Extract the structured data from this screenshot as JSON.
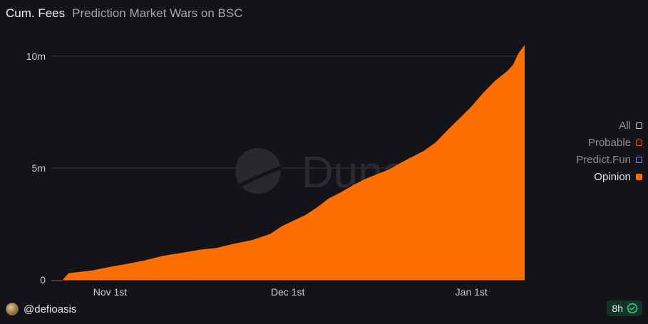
{
  "header": {
    "title": "Cum. Fees",
    "subtitle": "Prediction Market Wars on BSC"
  },
  "watermark": {
    "text": "Dune",
    "icon": "dune-logo-icon"
  },
  "legend": {
    "items": [
      {
        "label": "All",
        "color": "#d0d0d6",
        "active": false
      },
      {
        "label": "Probable",
        "color": "#e8642c",
        "active": false
      },
      {
        "label": "Predict.Fun",
        "color": "#a77be6",
        "active": false
      },
      {
        "label": "Opinion",
        "color": "#ff6e00",
        "active": true
      }
    ]
  },
  "footer": {
    "username": "@defioasis",
    "avatar_icon": "user-avatar-icon",
    "refresh_label": "8h",
    "refresh_icon": "check-badge-icon",
    "refresh_color": "#2bd48a"
  },
  "chart_data": {
    "type": "area",
    "xaxis": {
      "type": "date",
      "range": [
        "2025-10-24",
        "2026-01-10"
      ],
      "ticks": [
        {
          "date": "2025-11-01",
          "label": "Nov 1st"
        },
        {
          "date": "2025-12-01",
          "label": "Dec 1st"
        },
        {
          "date": "2026-01-01",
          "label": "Jan 1st"
        }
      ]
    },
    "yaxis": {
      "range": [
        0,
        10600000
      ],
      "ticks": [
        {
          "value": 0,
          "label": "0"
        },
        {
          "value": 5000000,
          "label": "5m"
        },
        {
          "value": 10000000,
          "label": "10m"
        }
      ]
    },
    "grid": true,
    "legend_position": "right",
    "series": [
      {
        "name": "Opinion",
        "color": "#ff6e00",
        "points": [
          [
            "2025-10-24",
            0
          ],
          [
            "2025-10-25",
            300000
          ],
          [
            "2025-10-29",
            420000
          ],
          [
            "2025-11-01",
            580000
          ],
          [
            "2025-11-04",
            720000
          ],
          [
            "2025-11-07",
            880000
          ],
          [
            "2025-11-10",
            1080000
          ],
          [
            "2025-11-13",
            1200000
          ],
          [
            "2025-11-16",
            1340000
          ],
          [
            "2025-11-19",
            1430000
          ],
          [
            "2025-11-22",
            1620000
          ],
          [
            "2025-11-25",
            1780000
          ],
          [
            "2025-11-28",
            2050000
          ],
          [
            "2025-11-30",
            2400000
          ],
          [
            "2025-12-02",
            2650000
          ],
          [
            "2025-12-04",
            2900000
          ],
          [
            "2025-12-06",
            3250000
          ],
          [
            "2025-12-08",
            3650000
          ],
          [
            "2025-12-10",
            3920000
          ],
          [
            "2025-12-12",
            4230000
          ],
          [
            "2025-12-14",
            4500000
          ],
          [
            "2025-12-16",
            4720000
          ],
          [
            "2025-12-18",
            4920000
          ],
          [
            "2025-12-20",
            5220000
          ],
          [
            "2025-12-22",
            5500000
          ],
          [
            "2025-12-24",
            5770000
          ],
          [
            "2025-12-26",
            6150000
          ],
          [
            "2025-12-28",
            6700000
          ],
          [
            "2025-12-30",
            7220000
          ],
          [
            "2026-01-01",
            7740000
          ],
          [
            "2026-01-03",
            8360000
          ],
          [
            "2026-01-05",
            8900000
          ],
          [
            "2026-01-07",
            9320000
          ],
          [
            "2026-01-08",
            9600000
          ],
          [
            "2026-01-09",
            10150000
          ],
          [
            "2026-01-10",
            10500000
          ]
        ]
      }
    ]
  }
}
